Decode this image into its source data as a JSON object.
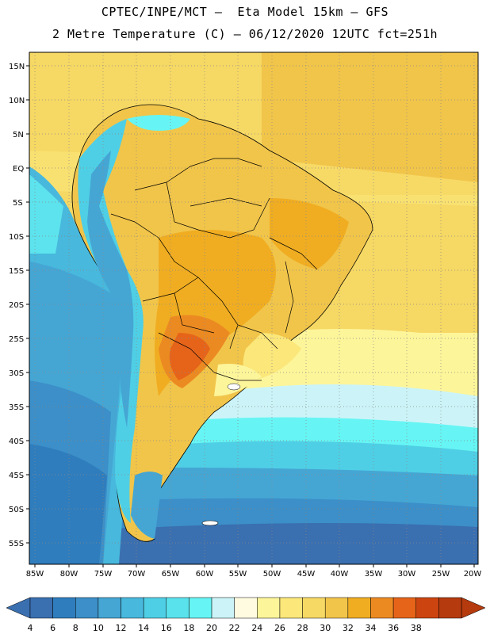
{
  "header": {
    "line1": "CPTEC/INPE/MCT –  Eta Model 15km – GFS",
    "line2": "2 Metre Temperature (C) – 06/12/2020 12UTC fct=251h"
  },
  "axes": {
    "lat_labels": [
      "15N",
      "10N",
      "5N",
      "EQ",
      "5S",
      "10S",
      "15S",
      "20S",
      "25S",
      "30S",
      "35S",
      "40S",
      "45S",
      "50S",
      "55S"
    ],
    "lon_labels": [
      "85W",
      "80W",
      "75W",
      "70W",
      "65W",
      "60W",
      "55W",
      "50W",
      "45W",
      "40W",
      "35W",
      "30W",
      "25W",
      "20W"
    ]
  },
  "colorbar": {
    "labels": [
      "4",
      "6",
      "8",
      "10",
      "12",
      "14",
      "16",
      "18",
      "20",
      "22",
      "24",
      "26",
      "28",
      "30",
      "32",
      "34",
      "36",
      "38"
    ],
    "colors": [
      "#3a6fb0",
      "#2f7dbd",
      "#3c8fc8",
      "#45a6d4",
      "#48b8dd",
      "#4fcfe5",
      "#5ae2ec",
      "#66f5f4",
      "#ccf4f8",
      "#fffbe0",
      "#fdf59a",
      "#fbe77a",
      "#f6d864",
      "#f1c54a",
      "#f0ad22",
      "#ec8a22",
      "#e6641a",
      "#cc4410",
      "#b53a0e"
    ],
    "low_color": "#3a6fb0",
    "high_color": "#b53a0e"
  }
}
